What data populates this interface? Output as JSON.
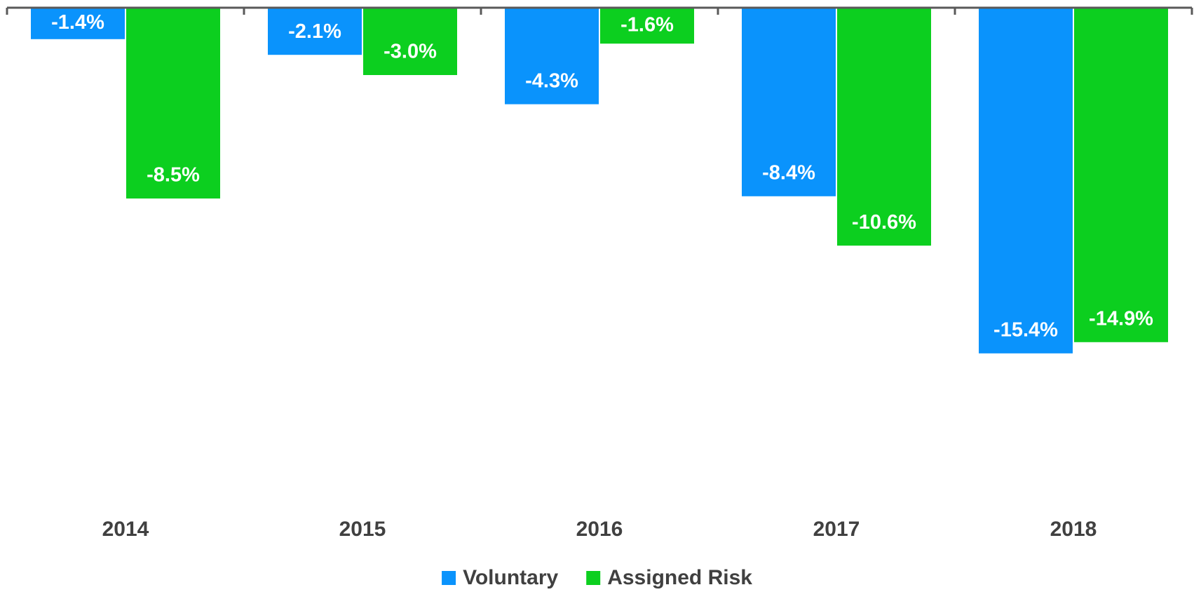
{
  "chart_data": {
    "type": "bar",
    "categories": [
      "2014",
      "2015",
      "2016",
      "2017",
      "2018"
    ],
    "series": [
      {
        "name": "Voluntary",
        "color": "#0a93fc",
        "values": [
          -1.4,
          -2.1,
          -4.3,
          -8.4,
          -15.4
        ],
        "value_labels": [
          "-1.4%",
          "-2.1%",
          "-4.3%",
          "-8.4%",
          "-15.4%"
        ]
      },
      {
        "name": "Assigned Risk",
        "color": "#0ccf1f",
        "values": [
          -8.5,
          -3.0,
          -1.6,
          -10.6,
          -14.9
        ],
        "value_labels": [
          "-8.5%",
          "-3.0%",
          "-1.6%",
          "-10.6%",
          "-14.9%"
        ]
      }
    ],
    "ylim": [
      -22,
      0
    ],
    "legend": "bottom"
  }
}
